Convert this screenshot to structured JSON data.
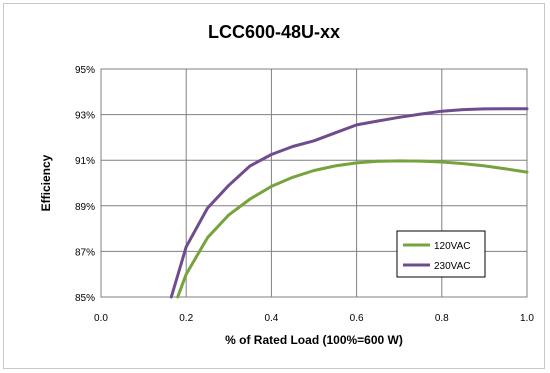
{
  "chart_data": {
    "type": "line",
    "title": "LCC600-48U-xx",
    "xlabel": "% of Rated Load (100%=600 W)",
    "ylabel": "Efficiency",
    "xlim": [
      0.0,
      1.0
    ],
    "ylim": [
      85,
      95
    ],
    "x_ticks": [
      "0.0",
      "0.2",
      "0.4",
      "0.6",
      "0.8",
      "1.0"
    ],
    "y_ticks": [
      "85%",
      "87%",
      "89%",
      "91%",
      "93%",
      "95%"
    ],
    "grid": true,
    "legend_position": "bottom-right",
    "series": [
      {
        "name": "120VAC",
        "color": "#77a33c",
        "x": [
          0.18,
          0.2,
          0.25,
          0.3,
          0.35,
          0.4,
          0.45,
          0.5,
          0.55,
          0.6,
          0.65,
          0.7,
          0.75,
          0.8,
          0.85,
          0.9,
          0.95,
          1.0
        ],
        "y": [
          85.0,
          86.0,
          87.6,
          88.6,
          89.3,
          89.85,
          90.25,
          90.55,
          90.75,
          90.88,
          90.95,
          90.97,
          90.96,
          90.92,
          90.85,
          90.75,
          90.62,
          90.48
        ]
      },
      {
        "name": "230VAC",
        "color": "#6e4c8e",
        "x": [
          0.165,
          0.2,
          0.25,
          0.3,
          0.35,
          0.4,
          0.45,
          0.5,
          0.55,
          0.6,
          0.65,
          0.7,
          0.75,
          0.8,
          0.85,
          0.9,
          0.95,
          1.0
        ],
        "y": [
          85.0,
          87.2,
          88.9,
          89.9,
          90.75,
          91.25,
          91.6,
          91.85,
          92.2,
          92.55,
          92.72,
          92.88,
          93.02,
          93.15,
          93.22,
          93.25,
          93.26,
          93.26
        ]
      }
    ]
  }
}
